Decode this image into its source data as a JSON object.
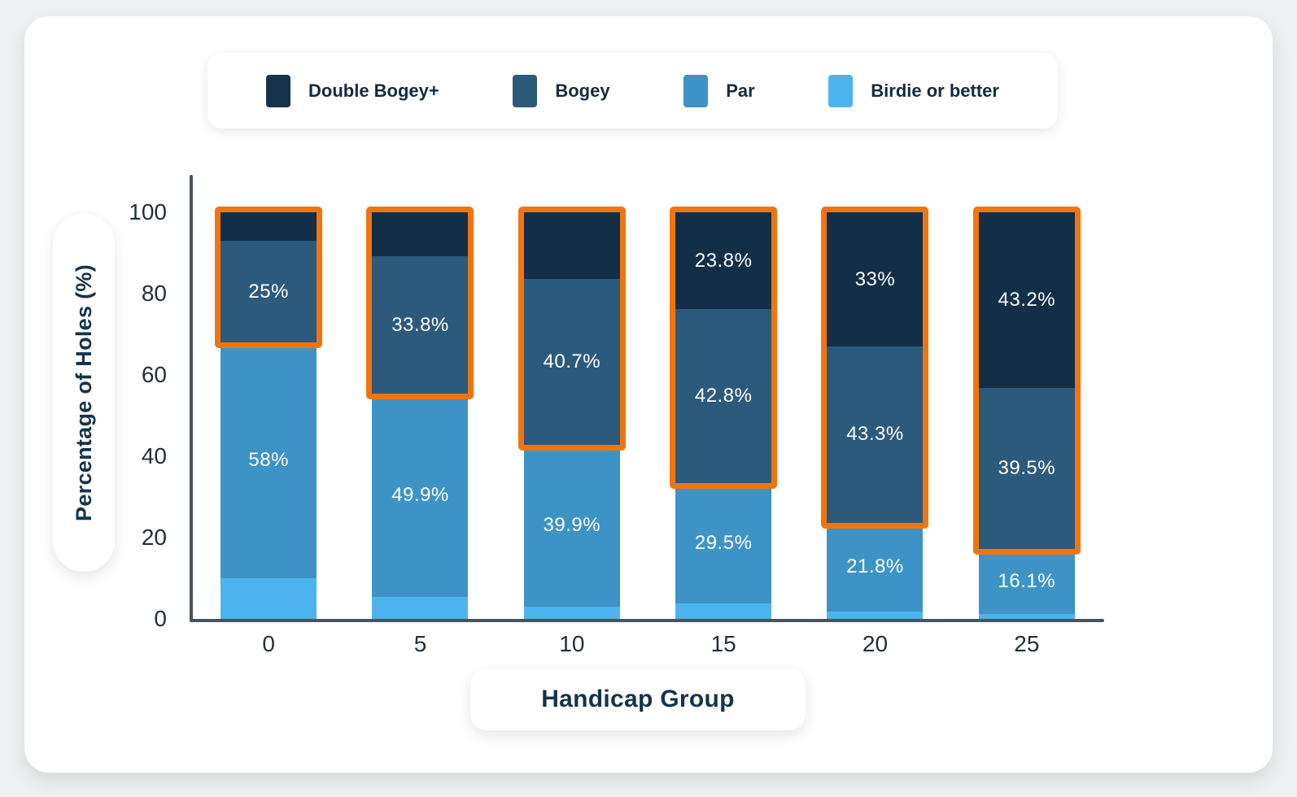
{
  "page": {
    "background": "#eef0f1",
    "card_background": "#ffffff"
  },
  "legend": {
    "items": [
      {
        "label": "Double Bogey+",
        "color": "#15344b"
      },
      {
        "label": "Bogey",
        "color": "#2d5a77"
      },
      {
        "label": "Par",
        "color": "#3d93c6"
      },
      {
        "label": "Birdie or better",
        "color": "#4db3ee"
      }
    ]
  },
  "chart_data": {
    "type": "bar",
    "stacked": true,
    "percent_stacked": true,
    "title": "",
    "xlabel": "Handicap Group",
    "ylabel": "Percentage of Holes (%)",
    "ylim": [
      0,
      100
    ],
    "yticks": [
      0,
      20,
      40,
      60,
      80,
      100
    ],
    "categories": [
      "0",
      "5",
      "10",
      "15",
      "20",
      "25"
    ],
    "series": [
      {
        "name": "Birdie or better",
        "color": "#4db3ee",
        "values": [
          10,
          5.5,
          3.0,
          3.9,
          1.9,
          1.2
        ],
        "labels": [
          "",
          "",
          "",
          "",
          "",
          ""
        ]
      },
      {
        "name": "Par",
        "color": "#3d93c6",
        "values": [
          58,
          49.9,
          39.9,
          29.5,
          21.8,
          16.1
        ],
        "labels": [
          "58%",
          "49.9%",
          "39.9%",
          "29.5%",
          "21.8%",
          "16.1%"
        ]
      },
      {
        "name": "Bogey",
        "color": "#2b5a7c",
        "values": [
          25,
          33.8,
          40.7,
          42.8,
          43.3,
          39.5
        ],
        "labels": [
          "25%",
          "33.8%",
          "40.7%",
          "42.8%",
          "43.3%",
          "39.5%"
        ]
      },
      {
        "name": "Double Bogey+",
        "color": "#132f47",
        "values": [
          7,
          10.8,
          16.4,
          23.8,
          33,
          43.2
        ],
        "labels": [
          "",
          "",
          "",
          "23.8%",
          "33%",
          "43.2%"
        ]
      }
    ],
    "highlight": {
      "color": "#f1750f",
      "series": [
        "Bogey",
        "Double Bogey+"
      ],
      "applies_to": "all bars"
    },
    "axis_color": "#49545e",
    "legend_position": "top",
    "grid": false
  }
}
